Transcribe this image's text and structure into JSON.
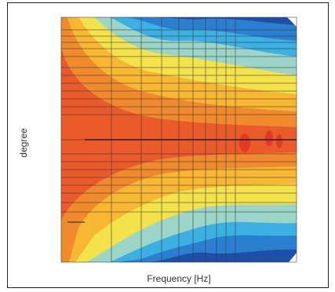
{
  "chart_data": {
    "type": "heatmap",
    "title": "",
    "xlabel": "Frequency [Hz]",
    "ylabel": "degree",
    "grid": true,
    "legend": "none",
    "colormap": [
      "#1d4fa8",
      "#2b7fd0",
      "#3bb0e3",
      "#9ad5c8",
      "#f4e24a",
      "#f7b733",
      "#f08a2c",
      "#ea5a2a",
      "#e23a25"
    ],
    "note_pattern": "symmetric directivity: warm (high level) band around center degree widening toward low frequency, cool (low level) at extreme degrees at high frequency"
  },
  "colors": {
    "frame": "#222222",
    "grid": "#3a3a3a"
  }
}
